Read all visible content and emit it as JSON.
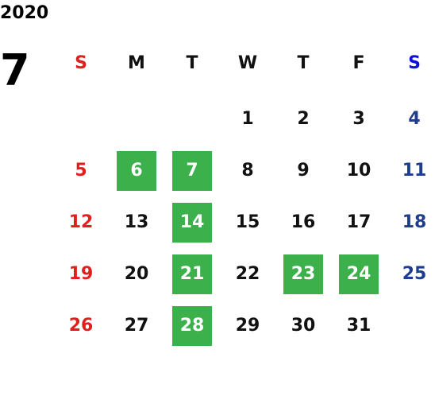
{
  "year": "2020",
  "month": "7",
  "weekdays": [
    "S",
    "M",
    "T",
    "W",
    "T",
    "F",
    "S"
  ],
  "weeks": [
    [
      null,
      null,
      null,
      1,
      2,
      3,
      4
    ],
    [
      5,
      {
        "day": 6,
        "highlight": true
      },
      {
        "day": 7,
        "highlight": true
      },
      8,
      9,
      10,
      11
    ],
    [
      12,
      13,
      {
        "day": 14,
        "highlight": true
      },
      15,
      16,
      17,
      18
    ],
    [
      19,
      20,
      {
        "day": 21,
        "highlight": true
      },
      22,
      {
        "day": 23,
        "highlight": true
      },
      {
        "day": 24,
        "highlight": true
      },
      25
    ],
    [
      26,
      27,
      {
        "day": 28,
        "highlight": true
      },
      29,
      30,
      31,
      null
    ]
  ],
  "colors": {
    "sunday": "#e0201e",
    "saturday_header": "#0b12d6",
    "saturday": "#1f3d8e",
    "weekday": "#111111",
    "highlight": "#3bb04b",
    "highlight_text": "#ffffff"
  }
}
